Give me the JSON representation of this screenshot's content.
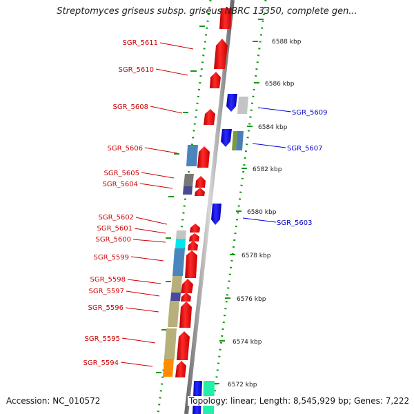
{
  "title": "Streptomyces griseus subsp. griseus NBRC 13350, complete gen...",
  "footer": {
    "accession": "Accession: NC_010572",
    "summary": "Topology: linear; Length: 8,545,929 bp; Genes: 7,222"
  },
  "scale_ticks": [
    "6588 kbp",
    "6586 kbp",
    "6584 kbp",
    "6582 kbp",
    "6580 kbp",
    "6578 kbp",
    "6576 kbp",
    "6574 kbp",
    "6572 kbp"
  ],
  "genes_reverse_strand": [
    {
      "label": "SGR_5611"
    },
    {
      "label": "SGR_5610"
    },
    {
      "label": "SGR_5608"
    },
    {
      "label": "SGR_5606"
    },
    {
      "label": "SGR_5605"
    },
    {
      "label": "SGR_5604"
    },
    {
      "label": "SGR_5602"
    },
    {
      "label": "SGR_5601"
    },
    {
      "label": "SGR_5600"
    },
    {
      "label": "SGR_5599"
    },
    {
      "label": "SGR_5598"
    },
    {
      "label": "SGR_5597"
    },
    {
      "label": "SGR_5596"
    },
    {
      "label": "SGR_5595"
    },
    {
      "label": "SGR_5594"
    }
  ],
  "genes_forward_strand": [
    {
      "label": "SGR_5609"
    },
    {
      "label": "SGR_5607"
    },
    {
      "label": "SGR_5603"
    }
  ],
  "colors": {
    "reverse_label": "#cc0000",
    "forward_label": "#0000cc",
    "gene_red": "#ee0000",
    "gene_blue": "#1010ee",
    "ruler_dots": "#119911",
    "backbone": "#8a8a8a"
  }
}
